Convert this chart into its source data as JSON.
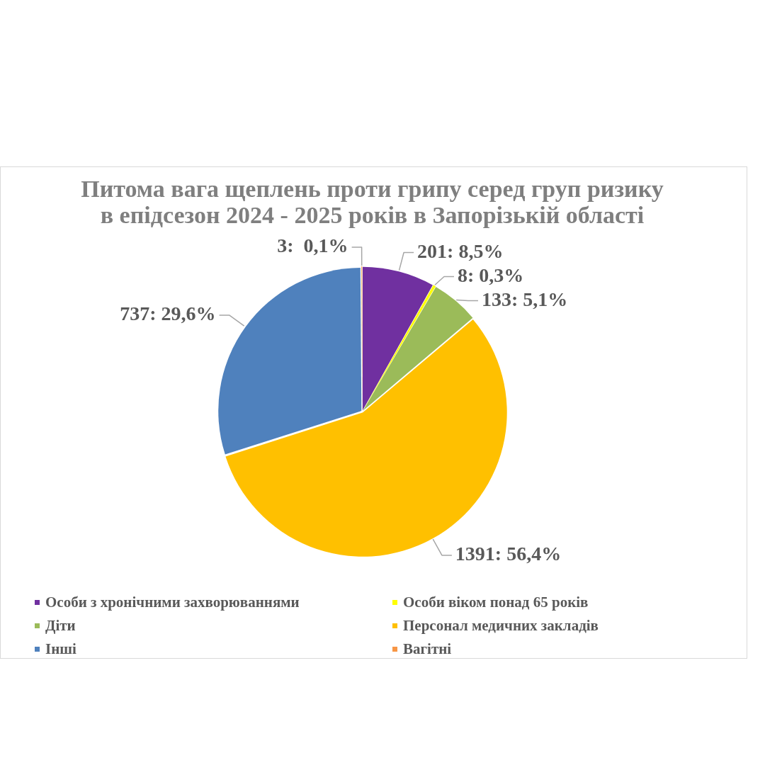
{
  "chart_data": {
    "type": "pie",
    "title": "Питома вага щеплень проти грипу серед груп ризику в епідсезон 2024 - 2025 років в Запорізькій області",
    "categories": [
      "Особи з хронічними захворюваннями",
      "Особи віком понад 65 років",
      "Діти",
      "Персонал медичних закладів",
      "Інші",
      "Вагітні"
    ],
    "values": [
      201,
      8,
      133,
      1391,
      737,
      3
    ],
    "colors": [
      "#7030a0",
      "#ffff00",
      "#9bbb59",
      "#ffc000",
      "#4f81bd",
      "#f79646"
    ],
    "value_labels": [
      "201: 8,5%",
      "8: 0,3%",
      "133: 5,1%",
      "1391: 56,4%",
      "737: 29,6%",
      "3:  0,1%"
    ],
    "legend": "bottom"
  }
}
